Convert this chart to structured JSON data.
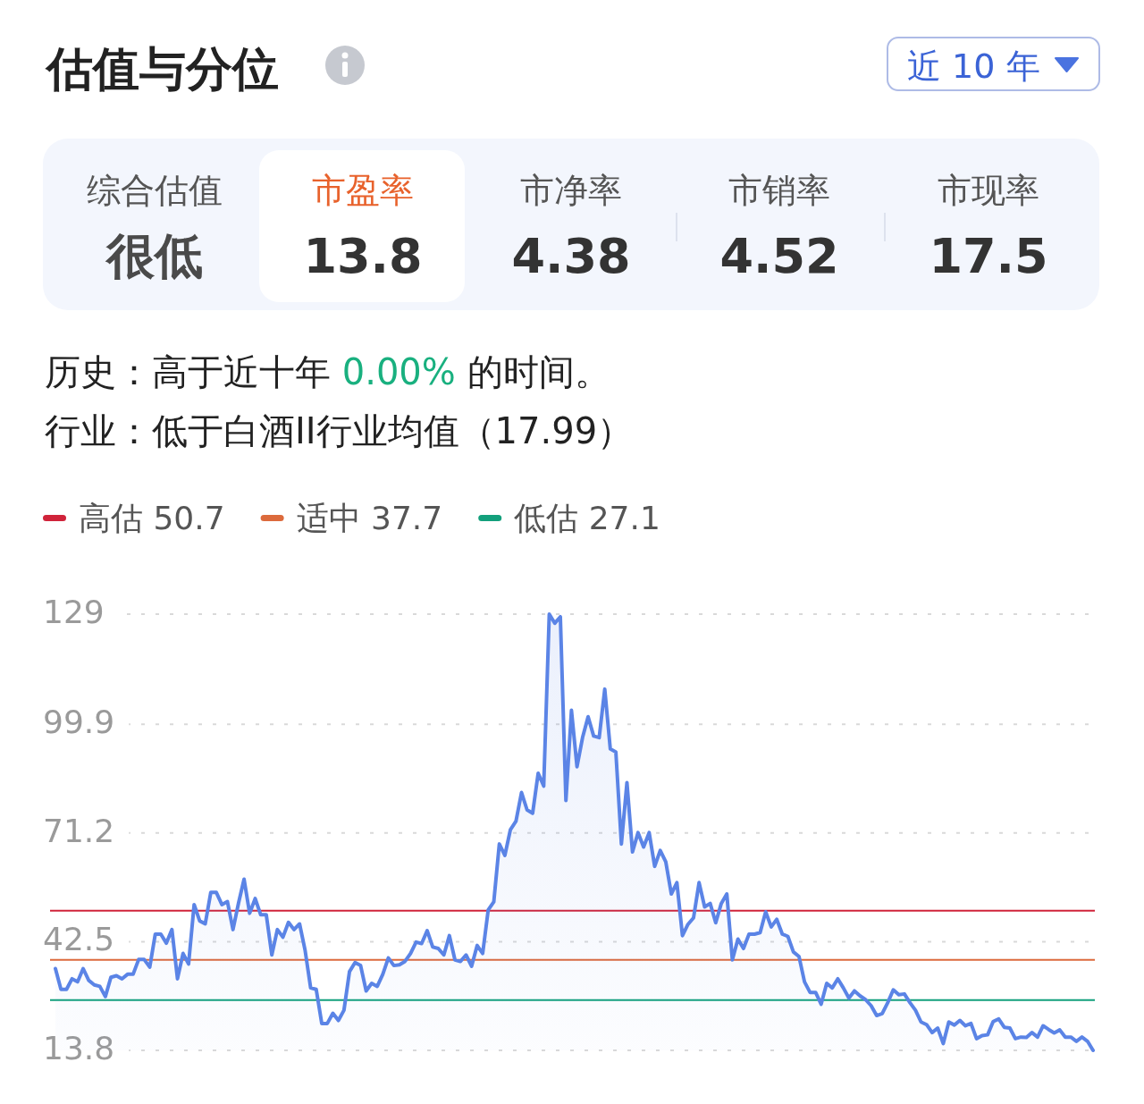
{
  "chart_data": [
    {
      "type": "other",
      "title": "估值与分位",
      "annotations": [
        "近 10 年",
        "综合估值",
        "很低",
        "市盈率",
        "13.8",
        "市净率",
        "4.38",
        "市销率",
        "4.52",
        "市现率",
        "17.5",
        "历史：高于近十年 ",
        "0.00%",
        " 的时间。",
        "行业：低于白酒II行业均值（17.99）"
      ]
    },
    {
      "type": "area",
      "categories": [
        null,
        null,
        null,
        null,
        null,
        null,
        null,
        null,
        null,
        null,
        null,
        null,
        null,
        null,
        null,
        null,
        null,
        null,
        null,
        null,
        null,
        null,
        null,
        null,
        null,
        null,
        null,
        null,
        null,
        null,
        null,
        null,
        null,
        null,
        null,
        null,
        null,
        null,
        null,
        null,
        null,
        null,
        null,
        null,
        null,
        null,
        null,
        null,
        null,
        null,
        null,
        null,
        null,
        null,
        null,
        null,
        null,
        null,
        null,
        null,
        null,
        null,
        null,
        null,
        null,
        null,
        null,
        null,
        null,
        null,
        null,
        null,
        null,
        null,
        null,
        null,
        null,
        null,
        null,
        null,
        null,
        null,
        null,
        null,
        null,
        null,
        null,
        null,
        null,
        null,
        null,
        null,
        null,
        null,
        null,
        null,
        null,
        null,
        null,
        null,
        null,
        null,
        null,
        null,
        null,
        null,
        null,
        null,
        null,
        null,
        null,
        null,
        null,
        null,
        null,
        null,
        null,
        null,
        null,
        null,
        null,
        null,
        null,
        null,
        null,
        null,
        null,
        null,
        null,
        null,
        null,
        null,
        null,
        null,
        null,
        null,
        null,
        null,
        null,
        null,
        null,
        null,
        null,
        null,
        null,
        null,
        null,
        null,
        null,
        null,
        null,
        null,
        null,
        null,
        null,
        null,
        null,
        null,
        null,
        null,
        null,
        null,
        null,
        null,
        null,
        null,
        null,
        null,
        null,
        null,
        null,
        null,
        null,
        null,
        null,
        null,
        null,
        null,
        null,
        null,
        null,
        null,
        null,
        null,
        null,
        null,
        null,
        null
      ],
      "series": [
        {
          "color": "#5b84e6",
          "values": [
            35.4,
            29.9,
            29.9,
            32.7,
            31.9,
            35.4,
            32.3,
            31.1,
            30.7,
            28.0,
            33.1,
            33.5,
            32.7,
            33.9,
            33.9,
            37.8,
            37.8,
            35.8,
            44.5,
            44.5,
            42.1,
            45.7,
            32.7,
            39.4,
            36.6,
            52.3,
            48.0,
            47.2,
            55.5,
            55.5,
            52.3,
            53.1,
            45.7,
            52.7,
            59.0,
            50.0,
            53.9,
            49.6,
            49.6,
            39.0,
            45.7,
            43.7,
            47.6,
            45.7,
            47.2,
            40.2,
            30.3,
            29.9,
            20.9,
            20.9,
            23.6,
            21.7,
            24.4,
            34.6,
            37.0,
            36.2,
            29.5,
            31.5,
            30.7,
            33.9,
            38.2,
            36.2,
            36.4,
            37.3,
            39.4,
            42.4,
            42.0,
            45.4,
            41.1,
            40.7,
            39.0,
            44.1,
            37.7,
            37.3,
            39.0,
            36.0,
            41.5,
            39.4,
            50.9,
            53.0,
            68.3,
            65.3,
            72.1,
            74.3,
            81.9,
            77.3,
            76.4,
            87.0,
            83.6,
            129.0,
            126.6,
            128.3,
            79.8,
            103.6,
            88.7,
            96.4,
            101.9,
            96.8,
            96.4,
            109.2,
            93.4,
            92.6,
            68.3,
            84.5,
            66.2,
            71.3,
            67.5,
            71.3,
            62.4,
            66.6,
            63.6,
            55.1,
            58.1,
            44.1,
            47.1,
            48.8,
            58.1,
            51.7,
            52.6,
            47.5,
            52.6,
            55.1,
            37.7,
            43.2,
            40.7,
            44.5,
            44.5,
            44.9,
            50.4,
            46.4,
            48.4,
            44.5,
            43.9,
            39.8,
            38.6,
            31.9,
            29.1,
            29.1,
            26.0,
            31.5,
            30.3,
            32.7,
            30.3,
            27.6,
            29.5,
            28.2,
            27.2,
            25.6,
            23.0,
            23.5,
            26.4,
            29.8,
            28.5,
            28.7,
            26.4,
            24.4,
            21.3,
            20.6,
            18.5,
            19.7,
            15.6,
            21.3,
            20.5,
            21.7,
            20.3,
            20.9,
            16.9,
            17.7,
            17.9,
            21.4,
            22.1,
            19.9,
            19.7,
            16.9,
            17.3,
            17.2,
            18.5,
            17.3,
            20.3,
            19.3,
            18.4,
            19.2,
            17.3,
            17.3,
            16.2,
            17.3,
            16.2,
            13.8
          ]
        }
      ],
      "ylim": [
        13.8,
        129
      ],
      "yticks": [
        13.8,
        42.5,
        71.2,
        99.9,
        129
      ],
      "grid": "y",
      "tick_labels": "y",
      "legend": "top left",
      "ref_lines": [
        {
          "axis": "y",
          "value": 50.7,
          "label": "高估 50.7",
          "color": "#d0233a"
        },
        {
          "axis": "y",
          "value": 37.7,
          "label": "适中 37.7",
          "color": "#dc6a3c"
        },
        {
          "axis": "y",
          "value": 27.1,
          "label": "低估 27.1",
          "color": "#13a07c"
        }
      ]
    }
  ]
}
